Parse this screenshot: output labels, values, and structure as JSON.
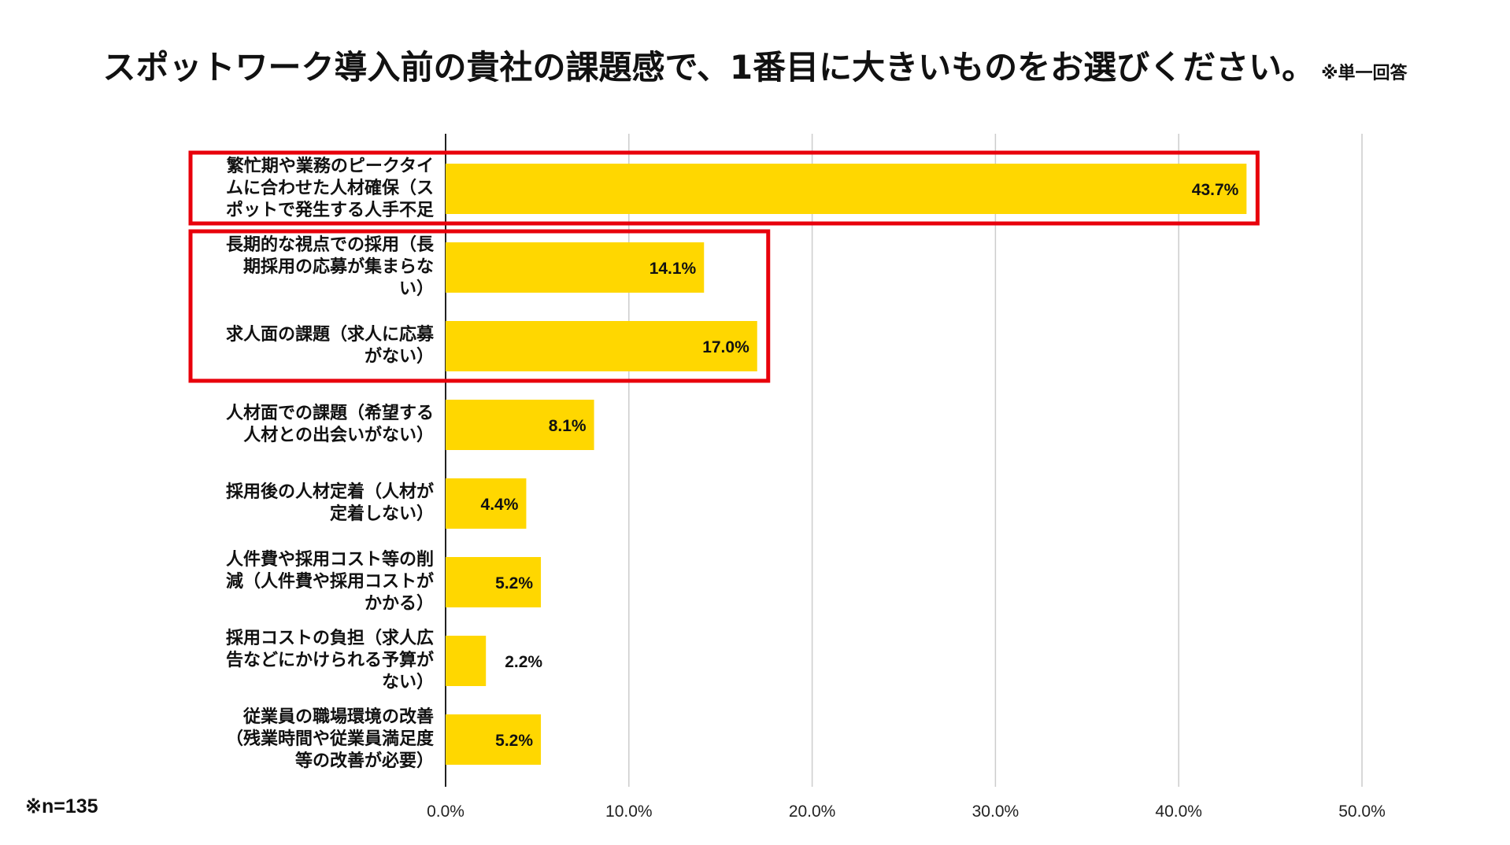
{
  "title": "スポットワーク導入前の貴社の課題感で、1番目に大きいものをお選びください。",
  "title_note": "※単一回答",
  "sample_note": "※n=135",
  "chart_data": {
    "type": "bar",
    "orientation": "horizontal",
    "categories": [
      [
        "繁忙期や業務のピークタイ",
        "ムに合わせた人材確保（ス",
        "ポットで発生する人手不足"
      ],
      [
        "長期的な視点での採用（長",
        "期採用の応募が集まらな",
        "い）"
      ],
      [
        "求人面の課題（求人に応募",
        "がない）"
      ],
      [
        "人材面での課題（希望する",
        "人材との出会いがない）"
      ],
      [
        "採用後の人材定着（人材が",
        "定着しない）"
      ],
      [
        "人件費や採用コスト等の削",
        "減（人件費や採用コストが",
        "かかる）"
      ],
      [
        "採用コストの負担（求人広",
        "告などにかけられる予算が",
        "ない）"
      ],
      [
        "従業員の職場環境の改善",
        "（残業時間や従業員満足度",
        "等の改善が必要）"
      ]
    ],
    "values": [
      43.7,
      14.1,
      17.0,
      8.1,
      4.4,
      5.2,
      2.2,
      5.2
    ],
    "data_labels": [
      "43.7%",
      "14.1%",
      "17.0%",
      "8.1%",
      "4.4%",
      "5.2%",
      "2.2%",
      "5.2%"
    ],
    "xlim": [
      0,
      50
    ],
    "x_ticks": [
      "0.0%",
      "10.0%",
      "20.0%",
      "30.0%",
      "40.0%",
      "50.0%"
    ],
    "grid": true,
    "bar_color": "#FFD700",
    "highlight_color": "#E8000B",
    "highlight_groups": [
      [
        0
      ],
      [
        1,
        2
      ]
    ]
  }
}
